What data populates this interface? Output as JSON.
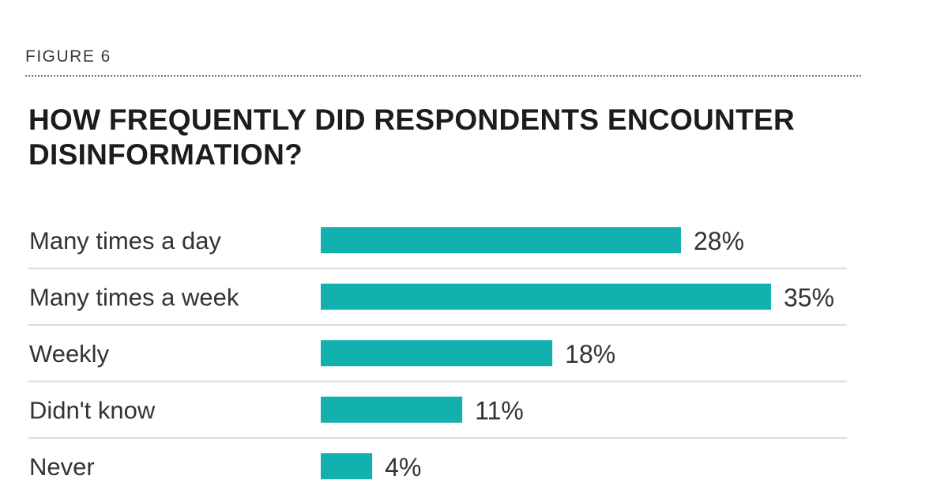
{
  "figure_label": "FIGURE 6",
  "chart_data": {
    "type": "bar",
    "orientation": "horizontal",
    "title": "HOW FREQUENTLY DID RESPONDENTS ENCOUNTER DISINFORMATION?",
    "categories": [
      "Many times a day",
      "Many times a week",
      "Weekly",
      "Didn't know",
      "Never"
    ],
    "values": [
      28,
      35,
      18,
      11,
      4
    ],
    "value_labels": [
      "28%",
      "35%",
      "18%",
      "11%",
      "4%"
    ],
    "unit": "%",
    "xlim": [
      0,
      35
    ],
    "bar_color": "#13b0b0",
    "separator_color": "#dddddd",
    "grid": false,
    "legend": "none"
  }
}
